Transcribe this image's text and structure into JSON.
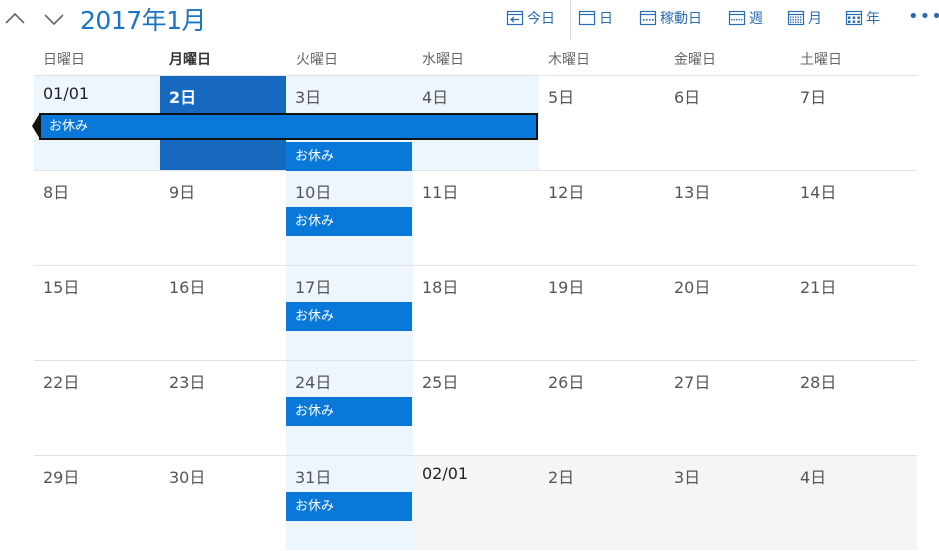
{
  "header": {
    "title": "2017年1月",
    "toolbar": {
      "today": "今日",
      "day": "日",
      "work_week": "稼動日",
      "week": "週",
      "month": "月",
      "year": "年",
      "more": "•••"
    }
  },
  "weekdays": [
    "日曜日",
    "月曜日",
    "火曜日",
    "水曜日",
    "木曜日",
    "金曜日",
    "土曜日"
  ],
  "weeks": [
    [
      "01/01",
      "2日",
      "3日",
      "4日",
      "5日",
      "6日",
      "7日"
    ],
    [
      "8日",
      "9日",
      "10日",
      "11日",
      "12日",
      "13日",
      "14日"
    ],
    [
      "15日",
      "16日",
      "17日",
      "18日",
      "19日",
      "20日",
      "21日"
    ],
    [
      "22日",
      "23日",
      "24日",
      "25日",
      "26日",
      "27日",
      "28日"
    ],
    [
      "29日",
      "30日",
      "31日",
      "02/01",
      "2日",
      "3日",
      "4日"
    ]
  ],
  "events": [
    {
      "title": "お休み",
      "week": 1,
      "start_day": 0,
      "end_day": 3
    },
    {
      "title": "お休み",
      "week": 1,
      "start_day": 2,
      "end_day": 2
    },
    {
      "title": "お休み",
      "week": 2,
      "start_day": 2,
      "end_day": 2
    },
    {
      "title": "お休み",
      "week": 3,
      "start_day": 2,
      "end_day": 2
    },
    {
      "title": "お休み",
      "week": 4,
      "start_day": 2,
      "end_day": 2
    },
    {
      "title": "お休み",
      "week": 5,
      "start_day": 2,
      "end_day": 2
    }
  ],
  "colors": {
    "accent": "#1b74c4",
    "event": "#0978d8",
    "selected": "#1669be",
    "tint": "#eef6fd"
  }
}
